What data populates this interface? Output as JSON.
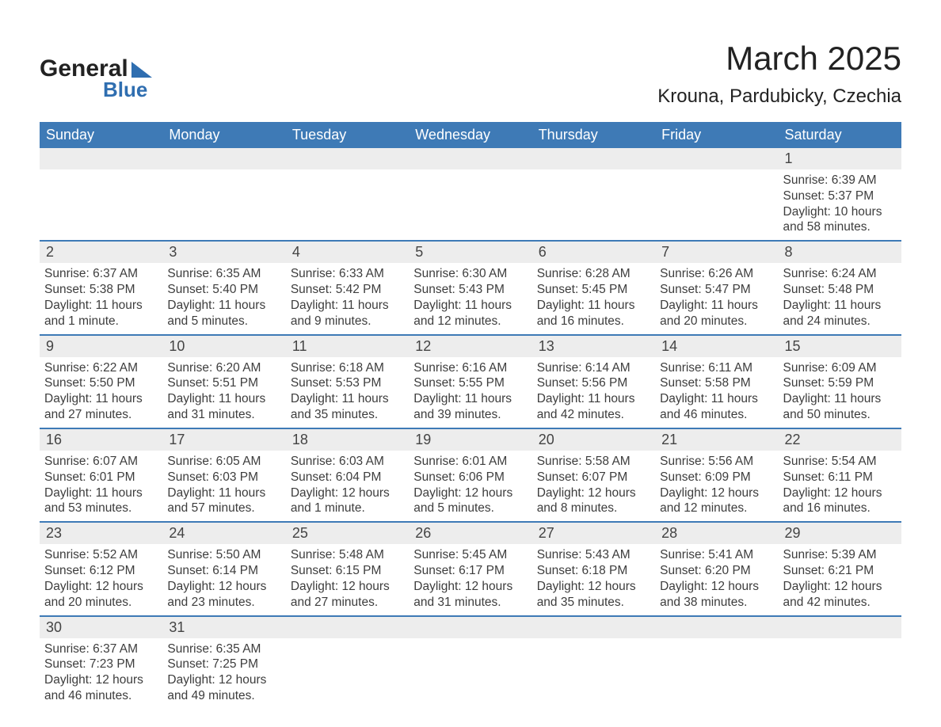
{
  "logo": {
    "general": "General",
    "blue": "Blue"
  },
  "title": "March 2025",
  "location": "Krouna, Pardubicky, Czechia",
  "colors": {
    "header_bg": "#3e7ab6",
    "header_text": "#ffffff",
    "row_divider": "#3e7ab6",
    "daynum_bg": "#ededed",
    "body_text": "#3d3d3d",
    "logo_accent": "#2f6eb0"
  },
  "day_headers": [
    "Sunday",
    "Monday",
    "Tuesday",
    "Wednesday",
    "Thursday",
    "Friday",
    "Saturday"
  ],
  "weeks": [
    [
      {
        "empty": true
      },
      {
        "empty": true
      },
      {
        "empty": true
      },
      {
        "empty": true
      },
      {
        "empty": true
      },
      {
        "empty": true
      },
      {
        "day": "1",
        "sunrise": "Sunrise: 6:39 AM",
        "sunset": "Sunset: 5:37 PM",
        "daylight1": "Daylight: 10 hours",
        "daylight2": "and 58 minutes."
      }
    ],
    [
      {
        "day": "2",
        "sunrise": "Sunrise: 6:37 AM",
        "sunset": "Sunset: 5:38 PM",
        "daylight1": "Daylight: 11 hours",
        "daylight2": "and 1 minute."
      },
      {
        "day": "3",
        "sunrise": "Sunrise: 6:35 AM",
        "sunset": "Sunset: 5:40 PM",
        "daylight1": "Daylight: 11 hours",
        "daylight2": "and 5 minutes."
      },
      {
        "day": "4",
        "sunrise": "Sunrise: 6:33 AM",
        "sunset": "Sunset: 5:42 PM",
        "daylight1": "Daylight: 11 hours",
        "daylight2": "and 9 minutes."
      },
      {
        "day": "5",
        "sunrise": "Sunrise: 6:30 AM",
        "sunset": "Sunset: 5:43 PM",
        "daylight1": "Daylight: 11 hours",
        "daylight2": "and 12 minutes."
      },
      {
        "day": "6",
        "sunrise": "Sunrise: 6:28 AM",
        "sunset": "Sunset: 5:45 PM",
        "daylight1": "Daylight: 11 hours",
        "daylight2": "and 16 minutes."
      },
      {
        "day": "7",
        "sunrise": "Sunrise: 6:26 AM",
        "sunset": "Sunset: 5:47 PM",
        "daylight1": "Daylight: 11 hours",
        "daylight2": "and 20 minutes."
      },
      {
        "day": "8",
        "sunrise": "Sunrise: 6:24 AM",
        "sunset": "Sunset: 5:48 PM",
        "daylight1": "Daylight: 11 hours",
        "daylight2": "and 24 minutes."
      }
    ],
    [
      {
        "day": "9",
        "sunrise": "Sunrise: 6:22 AM",
        "sunset": "Sunset: 5:50 PM",
        "daylight1": "Daylight: 11 hours",
        "daylight2": "and 27 minutes."
      },
      {
        "day": "10",
        "sunrise": "Sunrise: 6:20 AM",
        "sunset": "Sunset: 5:51 PM",
        "daylight1": "Daylight: 11 hours",
        "daylight2": "and 31 minutes."
      },
      {
        "day": "11",
        "sunrise": "Sunrise: 6:18 AM",
        "sunset": "Sunset: 5:53 PM",
        "daylight1": "Daylight: 11 hours",
        "daylight2": "and 35 minutes."
      },
      {
        "day": "12",
        "sunrise": "Sunrise: 6:16 AM",
        "sunset": "Sunset: 5:55 PM",
        "daylight1": "Daylight: 11 hours",
        "daylight2": "and 39 minutes."
      },
      {
        "day": "13",
        "sunrise": "Sunrise: 6:14 AM",
        "sunset": "Sunset: 5:56 PM",
        "daylight1": "Daylight: 11 hours",
        "daylight2": "and 42 minutes."
      },
      {
        "day": "14",
        "sunrise": "Sunrise: 6:11 AM",
        "sunset": "Sunset: 5:58 PM",
        "daylight1": "Daylight: 11 hours",
        "daylight2": "and 46 minutes."
      },
      {
        "day": "15",
        "sunrise": "Sunrise: 6:09 AM",
        "sunset": "Sunset: 5:59 PM",
        "daylight1": "Daylight: 11 hours",
        "daylight2": "and 50 minutes."
      }
    ],
    [
      {
        "day": "16",
        "sunrise": "Sunrise: 6:07 AM",
        "sunset": "Sunset: 6:01 PM",
        "daylight1": "Daylight: 11 hours",
        "daylight2": "and 53 minutes."
      },
      {
        "day": "17",
        "sunrise": "Sunrise: 6:05 AM",
        "sunset": "Sunset: 6:03 PM",
        "daylight1": "Daylight: 11 hours",
        "daylight2": "and 57 minutes."
      },
      {
        "day": "18",
        "sunrise": "Sunrise: 6:03 AM",
        "sunset": "Sunset: 6:04 PM",
        "daylight1": "Daylight: 12 hours",
        "daylight2": "and 1 minute."
      },
      {
        "day": "19",
        "sunrise": "Sunrise: 6:01 AM",
        "sunset": "Sunset: 6:06 PM",
        "daylight1": "Daylight: 12 hours",
        "daylight2": "and 5 minutes."
      },
      {
        "day": "20",
        "sunrise": "Sunrise: 5:58 AM",
        "sunset": "Sunset: 6:07 PM",
        "daylight1": "Daylight: 12 hours",
        "daylight2": "and 8 minutes."
      },
      {
        "day": "21",
        "sunrise": "Sunrise: 5:56 AM",
        "sunset": "Sunset: 6:09 PM",
        "daylight1": "Daylight: 12 hours",
        "daylight2": "and 12 minutes."
      },
      {
        "day": "22",
        "sunrise": "Sunrise: 5:54 AM",
        "sunset": "Sunset: 6:11 PM",
        "daylight1": "Daylight: 12 hours",
        "daylight2": "and 16 minutes."
      }
    ],
    [
      {
        "day": "23",
        "sunrise": "Sunrise: 5:52 AM",
        "sunset": "Sunset: 6:12 PM",
        "daylight1": "Daylight: 12 hours",
        "daylight2": "and 20 minutes."
      },
      {
        "day": "24",
        "sunrise": "Sunrise: 5:50 AM",
        "sunset": "Sunset: 6:14 PM",
        "daylight1": "Daylight: 12 hours",
        "daylight2": "and 23 minutes."
      },
      {
        "day": "25",
        "sunrise": "Sunrise: 5:48 AM",
        "sunset": "Sunset: 6:15 PM",
        "daylight1": "Daylight: 12 hours",
        "daylight2": "and 27 minutes."
      },
      {
        "day": "26",
        "sunrise": "Sunrise: 5:45 AM",
        "sunset": "Sunset: 6:17 PM",
        "daylight1": "Daylight: 12 hours",
        "daylight2": "and 31 minutes."
      },
      {
        "day": "27",
        "sunrise": "Sunrise: 5:43 AM",
        "sunset": "Sunset: 6:18 PM",
        "daylight1": "Daylight: 12 hours",
        "daylight2": "and 35 minutes."
      },
      {
        "day": "28",
        "sunrise": "Sunrise: 5:41 AM",
        "sunset": "Sunset: 6:20 PM",
        "daylight1": "Daylight: 12 hours",
        "daylight2": "and 38 minutes."
      },
      {
        "day": "29",
        "sunrise": "Sunrise: 5:39 AM",
        "sunset": "Sunset: 6:21 PM",
        "daylight1": "Daylight: 12 hours",
        "daylight2": "and 42 minutes."
      }
    ],
    [
      {
        "day": "30",
        "sunrise": "Sunrise: 6:37 AM",
        "sunset": "Sunset: 7:23 PM",
        "daylight1": "Daylight: 12 hours",
        "daylight2": "and 46 minutes."
      },
      {
        "day": "31",
        "sunrise": "Sunrise: 6:35 AM",
        "sunset": "Sunset: 7:25 PM",
        "daylight1": "Daylight: 12 hours",
        "daylight2": "and 49 minutes."
      },
      {
        "empty": true
      },
      {
        "empty": true
      },
      {
        "empty": true
      },
      {
        "empty": true
      },
      {
        "empty": true
      }
    ]
  ]
}
